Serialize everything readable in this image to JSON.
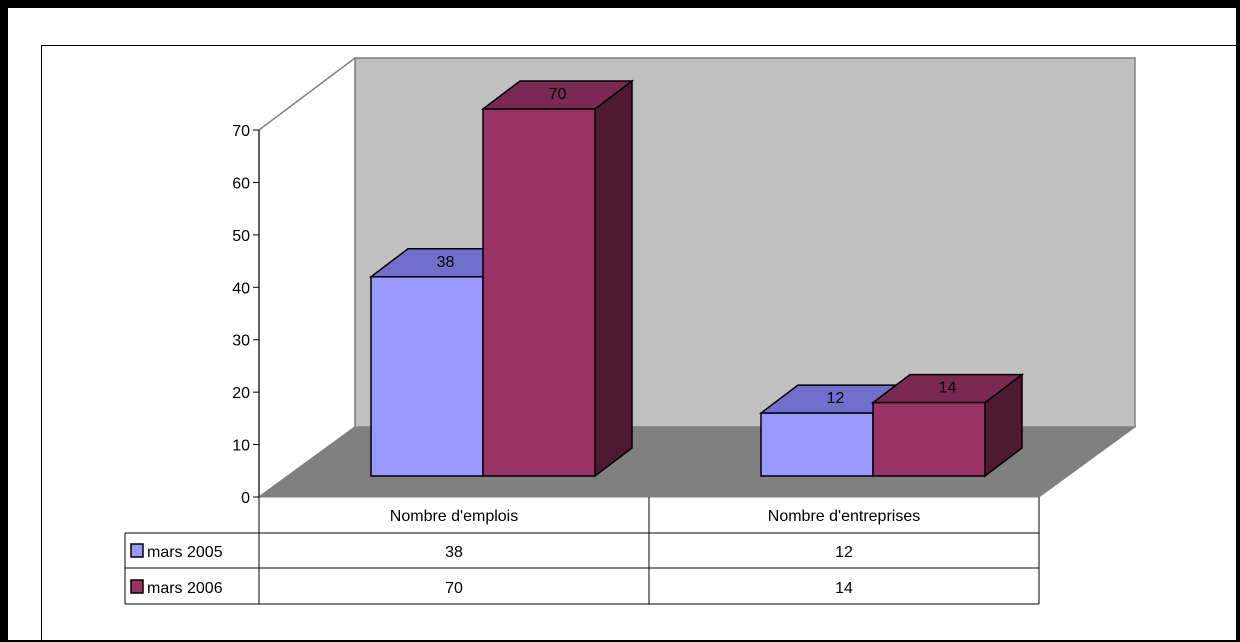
{
  "chart_data": {
    "type": "bar",
    "categories": [
      "Nombre d'emplois",
      "Nombre d'entreprises"
    ],
    "series": [
      {
        "name": "mars 2005",
        "values": [
          38,
          12
        ]
      },
      {
        "name": "mars 2006",
        "values": [
          70,
          14
        ]
      }
    ],
    "ylim": [
      0,
      70
    ],
    "yticks": [
      "0",
      "10",
      "20",
      "30",
      "40",
      "50",
      "60",
      "70"
    ],
    "grid": false,
    "legend": "data-table",
    "colors": {
      "mars 2005": {
        "front": "#9999ff",
        "top": "#7070cc",
        "side": "#4c4c99"
      },
      "mars 2006": {
        "front": "#993366",
        "top": "#7a2952",
        "side": "#4d1933"
      },
      "back_wall": "#c0c0c0",
      "floor": "#808080"
    }
  }
}
